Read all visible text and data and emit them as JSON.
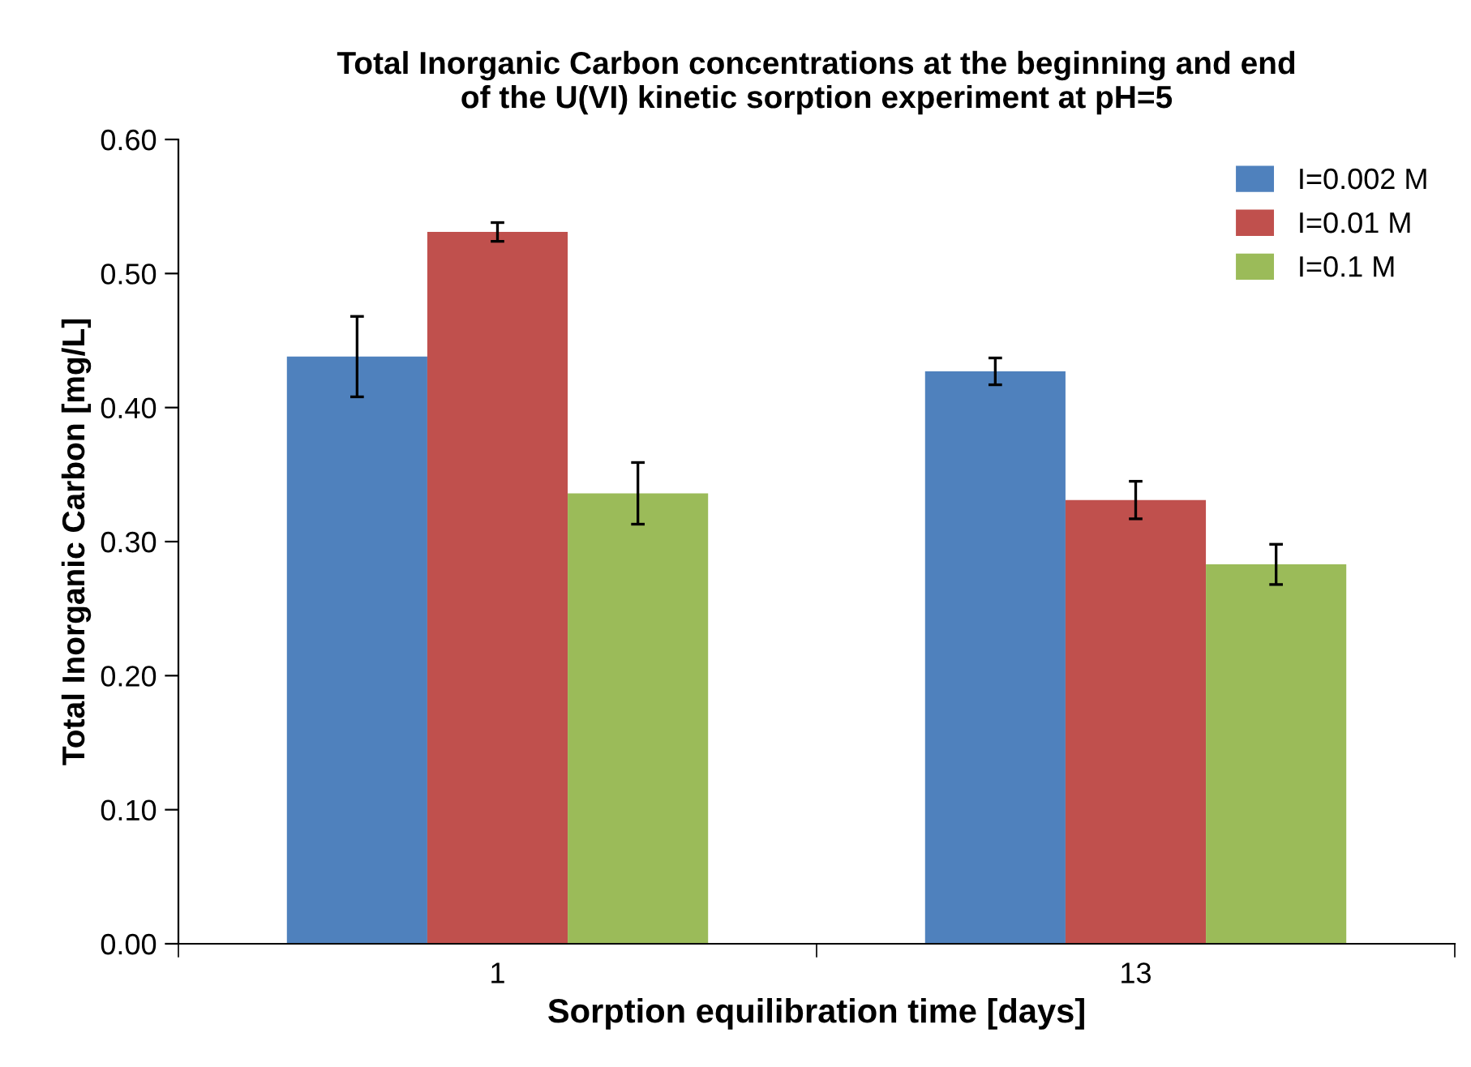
{
  "chart_data": {
    "type": "bar",
    "title": "Total Inorganic Carbon concentrations at the beginning and end\nof the U(VI) kinetic sorption experiment at pH=5",
    "xlabel": "Sorption equilibration time [days]",
    "ylabel": "Total Inorganic Carbon [mg/L]",
    "categories": [
      "1",
      "13"
    ],
    "series": [
      {
        "name": "I=0.002 M",
        "color": "#4f81bd",
        "values": [
          0.438,
          0.427
        ],
        "errors": [
          0.03,
          0.01
        ]
      },
      {
        "name": "I=0.01 M",
        "color": "#c0504d",
        "values": [
          0.531,
          0.331
        ],
        "errors": [
          0.007,
          0.014
        ]
      },
      {
        "name": "I=0.1 M",
        "color": "#9bbb59",
        "values": [
          0.336,
          0.283
        ],
        "errors": [
          0.023,
          0.015
        ]
      }
    ],
    "ylim": [
      0,
      0.6
    ],
    "yticks": [
      {
        "value": 0,
        "label": "0.00"
      },
      {
        "value": 0.1,
        "label": "0.10"
      },
      {
        "value": 0.2,
        "label": "0.20"
      },
      {
        "value": 0.3,
        "label": "0.30"
      },
      {
        "value": 0.4,
        "label": "0.40"
      },
      {
        "value": 0.5,
        "label": "0.50"
      },
      {
        "value": 0.6,
        "label": "0.60"
      }
    ],
    "grid": false,
    "legend": "top right"
  }
}
